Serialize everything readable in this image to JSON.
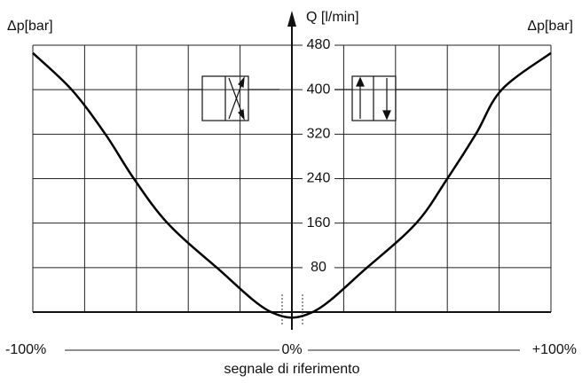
{
  "chart_data": {
    "type": "line",
    "y_label": "Q [l/min]",
    "left_label": "Δp[bar]",
    "right_label": "Δp[bar]",
    "x_label": "segnale di riferimento",
    "x": [
      -100,
      -85,
      -72,
      -61,
      -48,
      -29,
      -8,
      8,
      29,
      48,
      60,
      71,
      81,
      100
    ],
    "series": [
      {
        "color": "#000000",
        "values": [
          466,
          400,
          320,
          240,
          160,
          80,
          0,
          0,
          80,
          160,
          240,
          320,
          400,
          466
        ]
      }
    ],
    "xlim": [
      -100,
      100
    ],
    "ylim": [
      0,
      480
    ],
    "xticks": [
      {
        "value": -100,
        "label": "-100%"
      },
      {
        "value": 0,
        "label": "0%"
      },
      {
        "value": 100,
        "label": "+100%"
      }
    ],
    "xgrid": [
      -100,
      -80,
      -60,
      -40,
      -20,
      20,
      40,
      60,
      80,
      100
    ],
    "yticks": [
      80,
      160,
      240,
      320,
      400,
      480
    ],
    "grid": true
  }
}
